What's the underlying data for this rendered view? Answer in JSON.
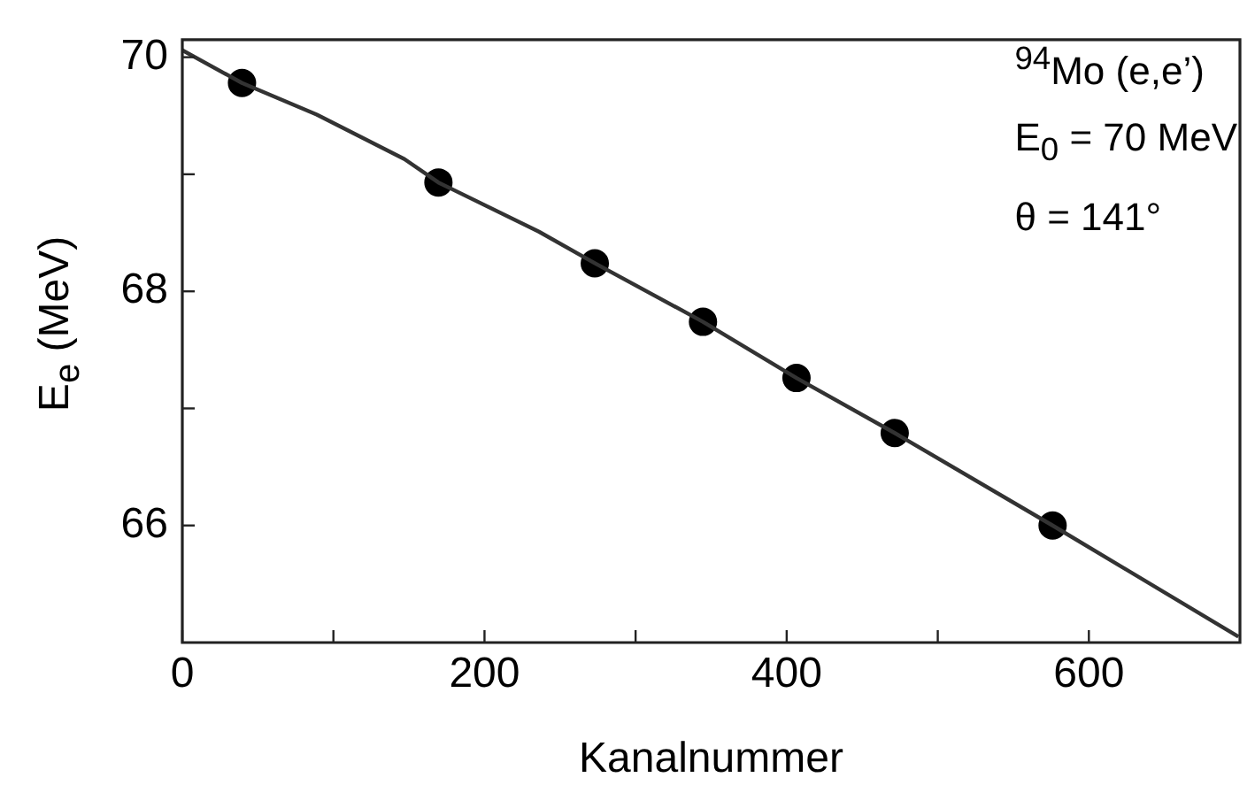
{
  "chart_data": {
    "type": "scatter",
    "xlabel": "Kanalnummer",
    "ylabel": "E$_{e}$ (MeV)",
    "annotations": [
      "$^{94}$Mo (e,e’)",
      "E$_{0}$ = 70 MeV",
      "θ = 141°"
    ],
    "xlim": [
      0,
      700
    ],
    "xticks": [
      0,
      {
        "value": 100,
        "label": null
      },
      200,
      {
        "value": 300,
        "label": null
      },
      400,
      {
        "value": 500,
        "label": null
      },
      600
    ],
    "ylim": [
      65,
      70.15
    ],
    "yticks": [
      66,
      {
        "value": 67,
        "label": null
      },
      68,
      {
        "value": 69,
        "label": null
      },
      70
    ],
    "grid": false,
    "legend": false,
    "series": [
      {
        "type": "line",
        "color": "#333333",
        "marker": "none",
        "line_style": "solid",
        "x": [
          0,
          39.5,
          89,
          147,
          169.5,
          236,
          273,
          344.6,
          406.5,
          471.5,
          576,
          699
        ],
        "values": [
          70.06,
          69.78,
          69.51,
          69.13,
          68.93,
          68.51,
          68.24,
          67.74,
          67.26,
          66.79,
          66.0,
          65.05
        ]
      },
      {
        "color": "#000000",
        "marker": "circle",
        "x": [
          39.5,
          169.5,
          273,
          344.6,
          406.5,
          471.5,
          576
        ],
        "values": [
          69.78,
          68.93,
          68.24,
          67.74,
          67.26,
          66.79,
          66.0
        ]
      }
    ]
  }
}
